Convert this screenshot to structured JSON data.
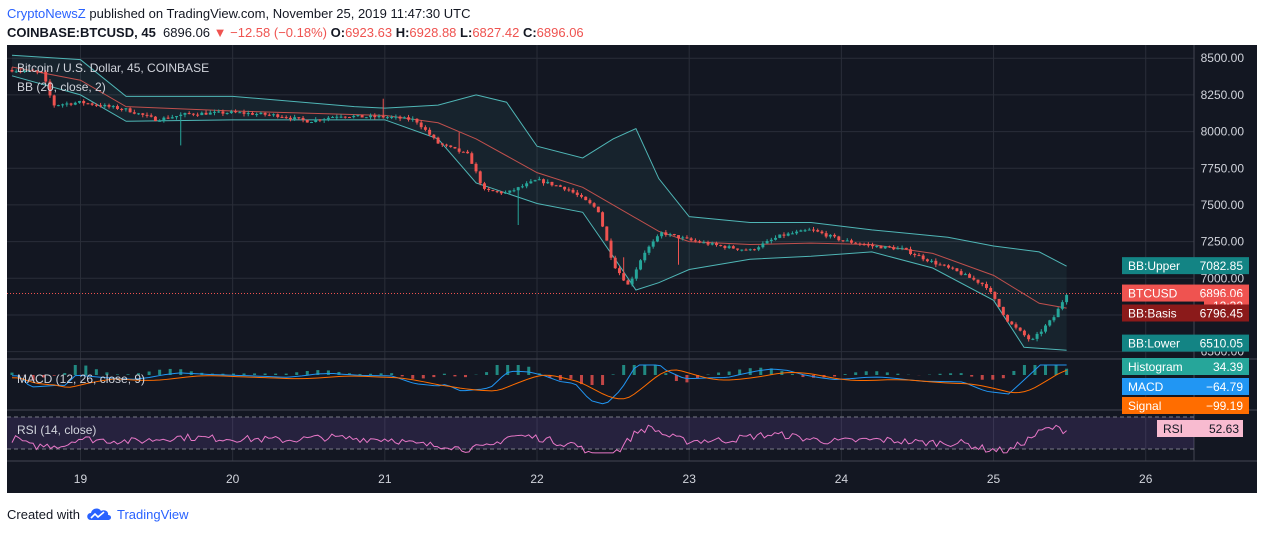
{
  "header": {
    "username": "CryptoNewsZ",
    "published_text": "published on TradingView.com, November 25, 2019 11:47:30 UTC",
    "symbol": "COINBASE:BTCUSD, 45",
    "last": "6896.06",
    "change": "▼ −12.58 (−0.18%)",
    "o_label": "O:",
    "o_value": "6923.63",
    "h_label": "H:",
    "h_value": "6928.88",
    "l_label": "L:",
    "l_value": "6827.42",
    "c_label": "C:",
    "c_value": "6896.06"
  },
  "footer": {
    "created_with": "Created with",
    "brand": "TradingView"
  },
  "colors": {
    "background": "#131722",
    "up": "#26a69a",
    "down": "#ef5350",
    "bb_band": "#4fb6b6",
    "bb_basis": "#c0504d",
    "macd": "#2196f3",
    "signal": "#ff6d00",
    "rsi": "#e877c8",
    "grid": "#2a2e39",
    "axis_text": "#d1d4dc"
  },
  "chart_data": {
    "type": "candlestick",
    "title": "Bitcoin / U.S. Dollar, 45, COINBASE",
    "indicator_label": "BB (20, close, 2)",
    "x_axis_ticks": [
      "19",
      "20",
      "21",
      "22",
      "23",
      "24",
      "25",
      "26"
    ],
    "y_axis_ticks": [
      "8500.00",
      "8250.00",
      "8000.00",
      "7750.00",
      "7500.00",
      "7250.00",
      "7000.00",
      "6750.00",
      "6500.00"
    ],
    "ylim": [
      6450,
      8590
    ],
    "grid": true,
    "price_path": [
      [
        18.55,
        8420
      ],
      [
        18.75,
        8400
      ],
      [
        18.82,
        8180
      ],
      [
        19.0,
        8200
      ],
      [
        19.3,
        8150
      ],
      [
        19.5,
        8080
      ],
      [
        19.7,
        8120
      ],
      [
        20.0,
        8130
      ],
      [
        20.3,
        8110
      ],
      [
        20.5,
        8070
      ],
      [
        20.7,
        8110
      ],
      [
        20.85,
        8100
      ],
      [
        21.0,
        8100
      ],
      [
        21.2,
        8080
      ],
      [
        21.35,
        7920
      ],
      [
        21.55,
        7840
      ],
      [
        21.65,
        7600
      ],
      [
        21.8,
        7580
      ],
      [
        22.0,
        7670
      ],
      [
        22.2,
        7610
      ],
      [
        22.4,
        7470
      ],
      [
        22.5,
        7100
      ],
      [
        22.6,
        6950
      ],
      [
        22.7,
        7170
      ],
      [
        22.82,
        7310
      ],
      [
        23.0,
        7260
      ],
      [
        23.2,
        7220
      ],
      [
        23.4,
        7190
      ],
      [
        23.6,
        7290
      ],
      [
        23.8,
        7330
      ],
      [
        24.0,
        7260
      ],
      [
        24.2,
        7220
      ],
      [
        24.4,
        7200
      ],
      [
        24.6,
        7110
      ],
      [
        24.75,
        7050
      ],
      [
        24.95,
        6950
      ],
      [
        25.1,
        6700
      ],
      [
        25.25,
        6570
      ],
      [
        25.4,
        6740
      ],
      [
        25.48,
        6896.06
      ]
    ],
    "bollinger_bands": {
      "upper": [
        [
          18.55,
          8520
        ],
        [
          19.0,
          8490
        ],
        [
          19.3,
          8240
        ],
        [
          20.0,
          8240
        ],
        [
          20.8,
          8170
        ],
        [
          21.0,
          8160
        ],
        [
          21.35,
          8180
        ],
        [
          21.6,
          8250
        ],
        [
          21.8,
          8200
        ],
        [
          22.0,
          7900
        ],
        [
          22.3,
          7820
        ],
        [
          22.5,
          7950
        ],
        [
          22.65,
          8020
        ],
        [
          22.8,
          7680
        ],
        [
          23.0,
          7420
        ],
        [
          23.4,
          7380
        ],
        [
          23.8,
          7380
        ],
        [
          24.2,
          7330
        ],
        [
          24.7,
          7280
        ],
        [
          25.0,
          7220
        ],
        [
          25.3,
          7180
        ],
        [
          25.48,
          7082.85
        ]
      ],
      "basis": [
        [
          18.55,
          8440
        ],
        [
          19.0,
          8350
        ],
        [
          19.3,
          8170
        ],
        [
          20.0,
          8140
        ],
        [
          21.0,
          8110
        ],
        [
          21.35,
          8060
        ],
        [
          21.6,
          7950
        ],
        [
          22.0,
          7720
        ],
        [
          22.3,
          7620
        ],
        [
          22.5,
          7500
        ],
        [
          22.8,
          7320
        ],
        [
          23.0,
          7250
        ],
        [
          23.4,
          7230
        ],
        [
          23.8,
          7240
        ],
        [
          24.2,
          7230
        ],
        [
          24.6,
          7170
        ],
        [
          25.0,
          7020
        ],
        [
          25.3,
          6830
        ],
        [
          25.48,
          6796.45
        ]
      ],
      "lower": [
        [
          18.55,
          8380
        ],
        [
          19.0,
          8250
        ],
        [
          19.3,
          8070
        ],
        [
          20.0,
          8080
        ],
        [
          21.0,
          8080
        ],
        [
          21.35,
          7950
        ],
        [
          21.6,
          7650
        ],
        [
          22.0,
          7510
        ],
        [
          22.3,
          7450
        ],
        [
          22.5,
          7150
        ],
        [
          22.65,
          6920
        ],
        [
          22.8,
          6970
        ],
        [
          23.0,
          7060
        ],
        [
          23.4,
          7130
        ],
        [
          23.8,
          7150
        ],
        [
          24.2,
          7180
        ],
        [
          24.6,
          7070
        ],
        [
          25.0,
          6850
        ],
        [
          25.2,
          6530
        ],
        [
          25.48,
          6510.05
        ]
      ]
    },
    "last_price_labels": [
      {
        "name": "BB:Upper",
        "value": "7082.85",
        "price": 7082.85
      },
      {
        "name": "BTCUSD",
        "value": "6896.06",
        "price": 6896.06
      },
      {
        "name": "",
        "value": "12:32",
        "price": 6812
      },
      {
        "name": "BB:Basis",
        "value": "6796.45",
        "price": 6760
      },
      {
        "name": "BB:Lower",
        "value": "6510.05",
        "price": 6555
      }
    ],
    "macd": {
      "label": "MACD (12, 26, close, 9)",
      "histogram_label": "Histogram",
      "histogram_value": "34.39",
      "macd_label": "MACD",
      "macd_value": "−64.79",
      "signal_label": "Signal",
      "signal_value": "−99.19"
    },
    "rsi": {
      "label": "RSI (14, close)",
      "value_label": "RSI",
      "value": "52.63"
    }
  }
}
